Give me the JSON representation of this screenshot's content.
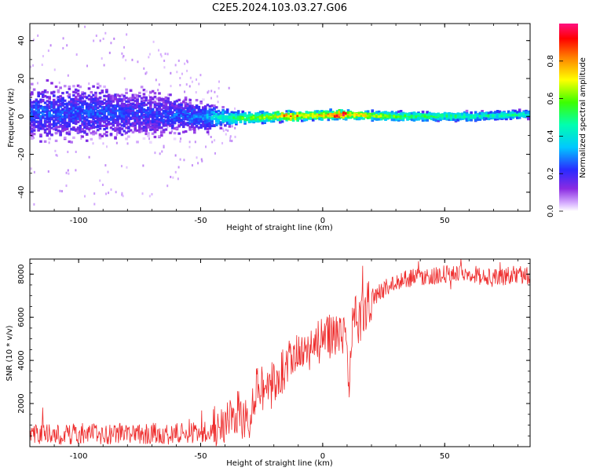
{
  "figure_title": "C2E5.2024.103.03.27.G06",
  "colors": {
    "snr_line": "#ee2b2b",
    "axes": "#000000",
    "background": "#ffffff"
  },
  "chart_data": [
    {
      "type": "heatmap",
      "title": "C2E5.2024.103.03.27.G06",
      "xlabel": "Height of straight line (km)",
      "ylabel": "Frequency (Hz)",
      "xlim": [
        -120,
        85
      ],
      "ylim": [
        -50,
        49
      ],
      "x_ticks": [
        -100,
        -50,
        0,
        50
      ],
      "y_ticks": [
        -40,
        -20,
        0,
        20,
        40
      ],
      "colorbar": {
        "label": "Normalized spectral amplitude",
        "range": [
          0.0,
          1.0
        ],
        "ticks": [
          "0.0",
          "0.2",
          "0.4",
          "0.6",
          "0.8"
        ],
        "colormap": "rainbow (white-violet-blue-cyan-green-yellow-red-magenta)"
      },
      "description_points": [
        {
          "x": -110,
          "freq_center": 2,
          "freq_spread": 12,
          "amplitude": 0.25
        },
        {
          "x": -90,
          "freq_center": 2,
          "freq_spread": 11,
          "amplitude": 0.25
        },
        {
          "x": -70,
          "freq_center": 1,
          "freq_spread": 10,
          "amplitude": 0.22
        },
        {
          "x": -50,
          "freq_center": 0,
          "freq_spread": 6,
          "amplitude": 0.3
        },
        {
          "x": -35,
          "freq_center": -1,
          "freq_spread": 3,
          "amplitude": 0.55
        },
        {
          "x": -15,
          "freq_center": 0,
          "freq_spread": 2,
          "amplitude": 0.75
        },
        {
          "x": 8,
          "freq_center": 1,
          "freq_spread": 2,
          "amplitude": 0.85
        },
        {
          "x": 30,
          "freq_center": 0,
          "freq_spread": 2,
          "amplitude": 0.6
        },
        {
          "x": 60,
          "freq_center": 0,
          "freq_spread": 2,
          "amplitude": 0.5
        },
        {
          "x": 84,
          "freq_center": 1,
          "freq_spread": 2,
          "amplitude": 0.45
        }
      ]
    },
    {
      "type": "line",
      "title": "",
      "xlabel": "Height of straight line (km)",
      "ylabel": "SNR (10 * v/v)",
      "xlim": [
        -120,
        85
      ],
      "ylim": [
        0,
        8700
      ],
      "x_ticks": [
        -100,
        -50,
        0,
        50
      ],
      "y_ticks": [
        2000,
        4000,
        6000,
        8000
      ],
      "series": [
        {
          "x": [
            -120,
            -110,
            -100,
            -90,
            -80,
            -70,
            -60,
            -50,
            -45,
            -42,
            -40,
            -38,
            -35,
            -32,
            -30,
            -28,
            -26,
            -24,
            -22,
            -20,
            -18,
            -15,
            -12,
            -10,
            -8,
            -5,
            -2,
            0,
            3,
            5,
            8,
            10,
            11,
            12,
            13,
            15,
            17,
            20,
            25,
            30,
            35,
            40,
            45,
            50,
            55,
            60,
            65,
            70,
            75,
            80,
            85
          ],
          "y": [
            600,
            550,
            600,
            600,
            650,
            600,
            600,
            650,
            800,
            1000,
            1300,
            1400,
            1500,
            1400,
            1500,
            2500,
            3000,
            2600,
            2800,
            3000,
            3300,
            3700,
            4000,
            4200,
            4400,
            4600,
            4800,
            4900,
            5100,
            5300,
            5400,
            5000,
            2500,
            5200,
            6000,
            5800,
            6400,
            6900,
            7300,
            7600,
            7800,
            7900,
            7900,
            8000,
            8100,
            8100,
            7900,
            7800,
            7900,
            8000,
            7900
          ]
        }
      ]
    }
  ]
}
